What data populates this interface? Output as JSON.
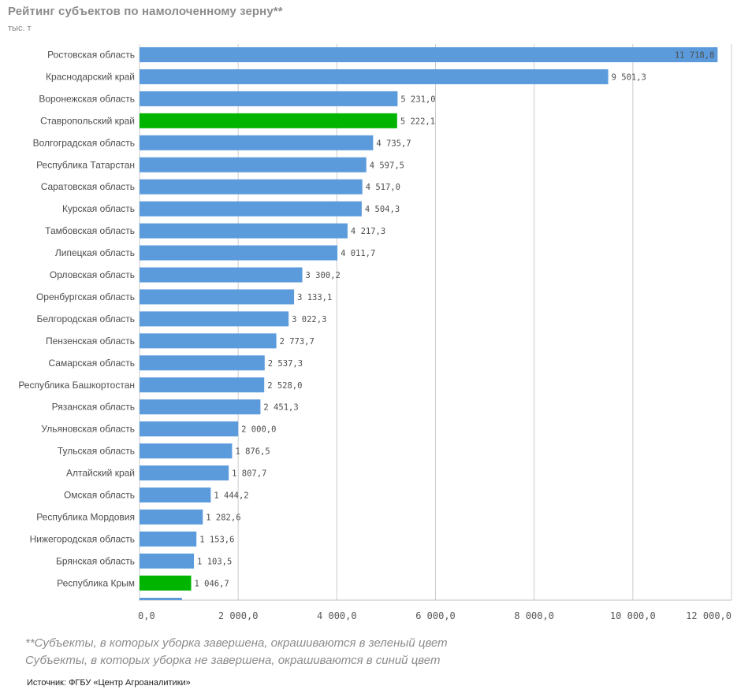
{
  "header": {
    "title": "Рейтинг субъектов по намолоченному зерну**",
    "unit": "тыс. т"
  },
  "colors": {
    "completed": "#00b400",
    "not_completed": "#5b9bdc",
    "grid": "#cccccc"
  },
  "chart_data": {
    "type": "bar",
    "orientation": "horizontal",
    "title": "Рейтинг субъектов по намолоченному зерну**",
    "xlabel": "",
    "ylabel": "тыс. т",
    "xlim": [
      0,
      12000
    ],
    "x_ticks": [
      "0,0",
      "2 000,0",
      "4 000,0",
      "6 000,0",
      "8 000,0",
      "10 000,0",
      "12 000,0"
    ],
    "grid": "vertical",
    "bars": [
      {
        "category": "Ростовская область",
        "value": 11718.8,
        "label": "11 718,8",
        "status": "not_completed"
      },
      {
        "category": "Краснодарский край",
        "value": 9501.3,
        "label": "9 501,3",
        "status": "not_completed"
      },
      {
        "category": "Воронежская область",
        "value": 5231.0,
        "label": "5 231,0",
        "status": "not_completed"
      },
      {
        "category": "Ставропольский край",
        "value": 5222.1,
        "label": "5 222,1",
        "status": "completed"
      },
      {
        "category": "Волгоградская область",
        "value": 4735.7,
        "label": "4 735,7",
        "status": "not_completed"
      },
      {
        "category": "Республика Татарстан",
        "value": 4597.5,
        "label": "4 597,5",
        "status": "not_completed"
      },
      {
        "category": "Саратовская область",
        "value": 4517.0,
        "label": "4 517,0",
        "status": "not_completed"
      },
      {
        "category": "Курская область",
        "value": 4504.3,
        "label": "4 504,3",
        "status": "not_completed"
      },
      {
        "category": "Тамбовская область",
        "value": 4217.3,
        "label": "4 217,3",
        "status": "not_completed"
      },
      {
        "category": "Липецкая область",
        "value": 4011.7,
        "label": "4 011,7",
        "status": "not_completed"
      },
      {
        "category": "Орловская область",
        "value": 3300.2,
        "label": "3 300,2",
        "status": "not_completed"
      },
      {
        "category": "Оренбургская область",
        "value": 3133.1,
        "label": "3 133,1",
        "status": "not_completed"
      },
      {
        "category": "Белгородская область",
        "value": 3022.3,
        "label": "3 022,3",
        "status": "not_completed"
      },
      {
        "category": "Пензенская область",
        "value": 2773.7,
        "label": "2 773,7",
        "status": "not_completed"
      },
      {
        "category": "Самарская область",
        "value": 2537.3,
        "label": "2 537,3",
        "status": "not_completed"
      },
      {
        "category": "Республика Башкортостан",
        "value": 2528.0,
        "label": "2 528,0",
        "status": "not_completed"
      },
      {
        "category": "Рязанская область",
        "value": 2451.3,
        "label": "2 451,3",
        "status": "not_completed"
      },
      {
        "category": "Ульяновская область",
        "value": 2000.0,
        "label": "2 000,0",
        "status": "not_completed"
      },
      {
        "category": "Тульская область",
        "value": 1876.5,
        "label": "1 876,5",
        "status": "not_completed"
      },
      {
        "category": "Алтайский край",
        "value": 1807.7,
        "label": "1 807,7",
        "status": "not_completed"
      },
      {
        "category": "Омская область",
        "value": 1444.2,
        "label": "1 444,2",
        "status": "not_completed"
      },
      {
        "category": "Республика Мордовия",
        "value": 1282.6,
        "label": "1 282,6",
        "status": "not_completed"
      },
      {
        "category": "Нижегородская область",
        "value": 1153.6,
        "label": "1 153,6",
        "status": "not_completed"
      },
      {
        "category": "Брянская область",
        "value": 1103.5,
        "label": "1 103,5",
        "status": "not_completed"
      },
      {
        "category": "Республика Крым",
        "value": 1046.7,
        "label": "1 046,7",
        "status": "completed"
      }
    ],
    "partial_bar": {
      "value": 860,
      "status": "not_completed"
    }
  },
  "footnotes": {
    "note_completed": "**Субъекты, в которых уборка завершена, окрашиваются в зеленый цвет",
    "note_not_completed": "Субъекты, в которых уборка не завершена, окрашиваются в синий цвет",
    "source": "Источник: ФГБУ «Центр Агроаналитики»"
  }
}
